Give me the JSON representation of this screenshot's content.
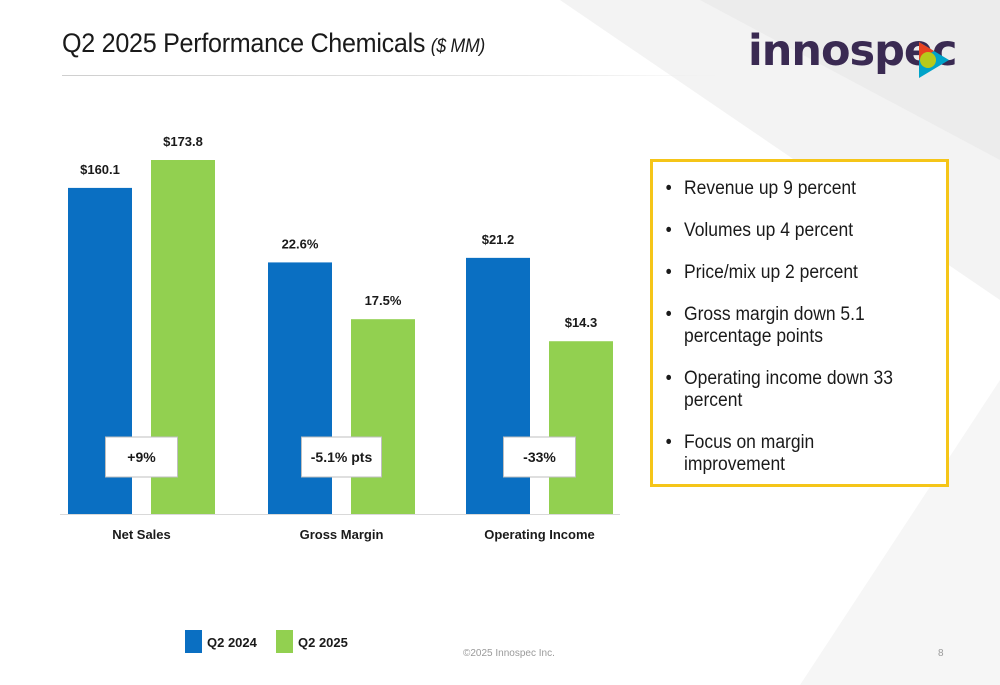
{
  "slide": {
    "title": "Q2 2025 Performance Chemicals",
    "title_unit": "($ MM)",
    "logo_text": "innospec",
    "footer": "©2025 Innospec Inc.",
    "page_number": "8"
  },
  "bullets": [
    "Revenue up 9 percent",
    "Volumes up 4 percent",
    "Price/mix up 2 percent",
    "Gross margin down 5.1 percentage points",
    "Operating income down 33 percent",
    "Focus on margin improvement"
  ],
  "colors": {
    "q2_2024": "#0a6fc2",
    "q2_2025": "#92d050",
    "box_border": "#f5c518",
    "logo": "#3a2a52"
  },
  "chart_data": {
    "type": "bar",
    "categories": [
      "Net Sales",
      "Gross Margin",
      "Operating Income"
    ],
    "series": [
      {
        "name": "Q2 2024",
        "color": "#0a6fc2",
        "labels": [
          "$160.1",
          "22.6%",
          "$21.2"
        ]
      },
      {
        "name": "Q2 2025",
        "color": "#92d050",
        "labels": [
          "$173.8",
          "17.5%",
          "$14.3"
        ]
      }
    ],
    "groups": [
      {
        "category": "Net Sales",
        "values": [
          160.1,
          173.8
        ],
        "unit": "$ MM",
        "ymax": 173.8,
        "change": "+9%"
      },
      {
        "category": "Gross Margin",
        "values": [
          22.6,
          17.5
        ],
        "unit": "%",
        "ymax": 31.8,
        "change": "-5.1% pts"
      },
      {
        "category": "Operating Income",
        "values": [
          21.2,
          14.3
        ],
        "unit": "$ MM",
        "ymax": 29.3,
        "change": "-33%"
      }
    ],
    "legend_position": "bottom-left",
    "grid": false
  }
}
